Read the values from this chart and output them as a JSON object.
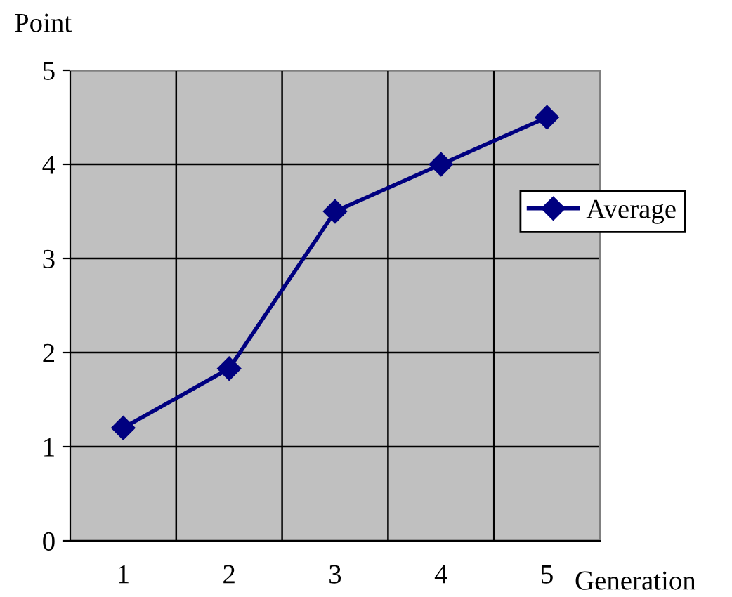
{
  "chart_data": {
    "type": "line",
    "xlabel": "Generation",
    "ylabel": "Point",
    "categories": [
      "1",
      "2",
      "3",
      "4",
      "5"
    ],
    "series": [
      {
        "name": "Average",
        "color": "#000080",
        "values": [
          1.2,
          1.83,
          3.5,
          4.0,
          4.5
        ]
      }
    ],
    "ylim": [
      0,
      5
    ],
    "yticks": [
      0,
      1,
      2,
      3,
      4,
      5
    ],
    "grid": true,
    "legend": "right",
    "marker": "diamond",
    "line_style": "solid"
  }
}
